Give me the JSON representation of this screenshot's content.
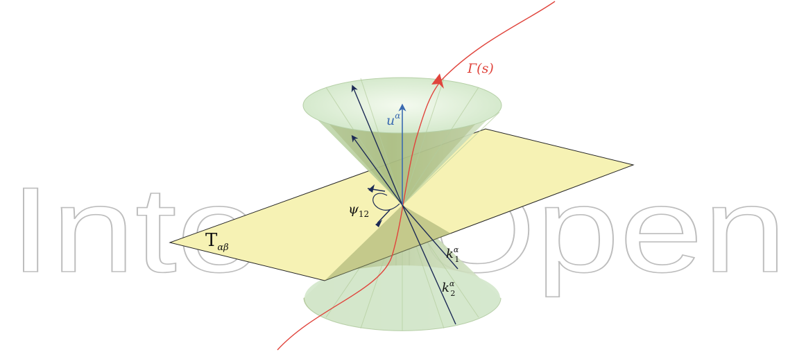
{
  "watermark": {
    "text": "IntechOpen",
    "color": "#bdbdbd"
  },
  "curve": {
    "label": "Γ(s)",
    "color": "#e0443c"
  },
  "observer": {
    "label": "u",
    "sup": "α",
    "color": "#3a6ab0"
  },
  "plane": {
    "label": "T",
    "sub": "αβ",
    "color": "#f6f2b4"
  },
  "angle": {
    "label": "ψ",
    "sub": "12"
  },
  "vectors": [
    {
      "label": "k",
      "sub": "1",
      "sup": "α"
    },
    {
      "label": "k",
      "sub": "2",
      "sup": "α"
    }
  ],
  "colors": {
    "cone": "#cfe6c6",
    "cone_dark": "#8ea06a",
    "vector": "#1c2a55"
  }
}
